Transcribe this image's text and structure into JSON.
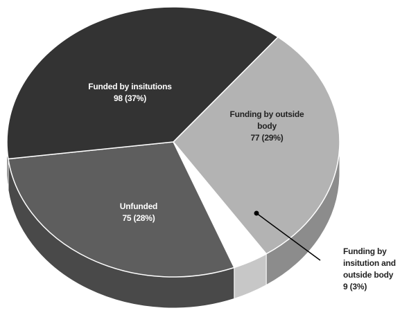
{
  "chart_data": {
    "type": "pie",
    "categories": [
      "Funding by outside body",
      "Funding by insitution and outside body",
      "Unfunded",
      "Funded by insitutions"
    ],
    "values": [
      77,
      9,
      75,
      98
    ],
    "value_labels": [
      "77 (29%)",
      "9 (3%)",
      "75 (28%)",
      "98 (37%)"
    ],
    "colors": [
      "#b3b3b3",
      "#ffffff",
      "#5e5e5e",
      "#333333"
    ]
  }
}
